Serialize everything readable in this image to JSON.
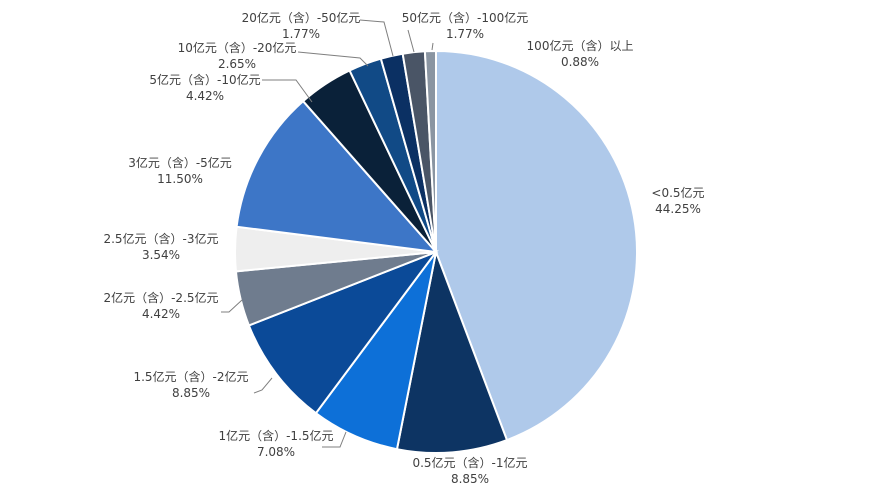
{
  "chart_data": {
    "type": "pie",
    "title": "",
    "start_angle_deg": 0,
    "direction": "clockwise",
    "slices": [
      {
        "label": "<0.5亿元",
        "value": 44.25,
        "display": "44.25%",
        "color": "#AFC9EA"
      },
      {
        "label": "0.5亿元（含）-1亿元",
        "value": 8.85,
        "display": "8.85%",
        "color": "#0D3463"
      },
      {
        "label": "1亿元（含）-1.5亿元",
        "value": 7.08,
        "display": "7.08%",
        "color": "#0D70D8"
      },
      {
        "label": "1.5亿元（含）-2亿元",
        "value": 8.85,
        "display": "8.85%",
        "color": "#0B4A98"
      },
      {
        "label": "2亿元（含）-2.5亿元",
        "value": 4.42,
        "display": "4.42%",
        "color": "#6F7C8E"
      },
      {
        "label": "2.5亿元（含）-3亿元",
        "value": 3.54,
        "display": "3.54%",
        "color": "#EEEEEE"
      },
      {
        "label": "3亿元（含）-5亿元",
        "value": 11.5,
        "display": "11.50%",
        "color": "#3D76C7"
      },
      {
        "label": "5亿元（含）-10亿元",
        "value": 4.42,
        "display": "4.42%",
        "color": "#0A2139"
      },
      {
        "label": "10亿元（含）-20亿元",
        "value": 2.65,
        "display": "2.65%",
        "color": "#114A86"
      },
      {
        "label": "20亿元（含）-50亿元",
        "value": 1.77,
        "display": "1.77%",
        "color": "#0B3063"
      },
      {
        "label": "50亿元（含）-100亿元",
        "value": 1.77,
        "display": "1.77%",
        "color": "#4A5566"
      },
      {
        "label": "100亿元（含）以上",
        "value": 0.88,
        "display": "0.88%",
        "color": "#8A95A2"
      }
    ]
  }
}
